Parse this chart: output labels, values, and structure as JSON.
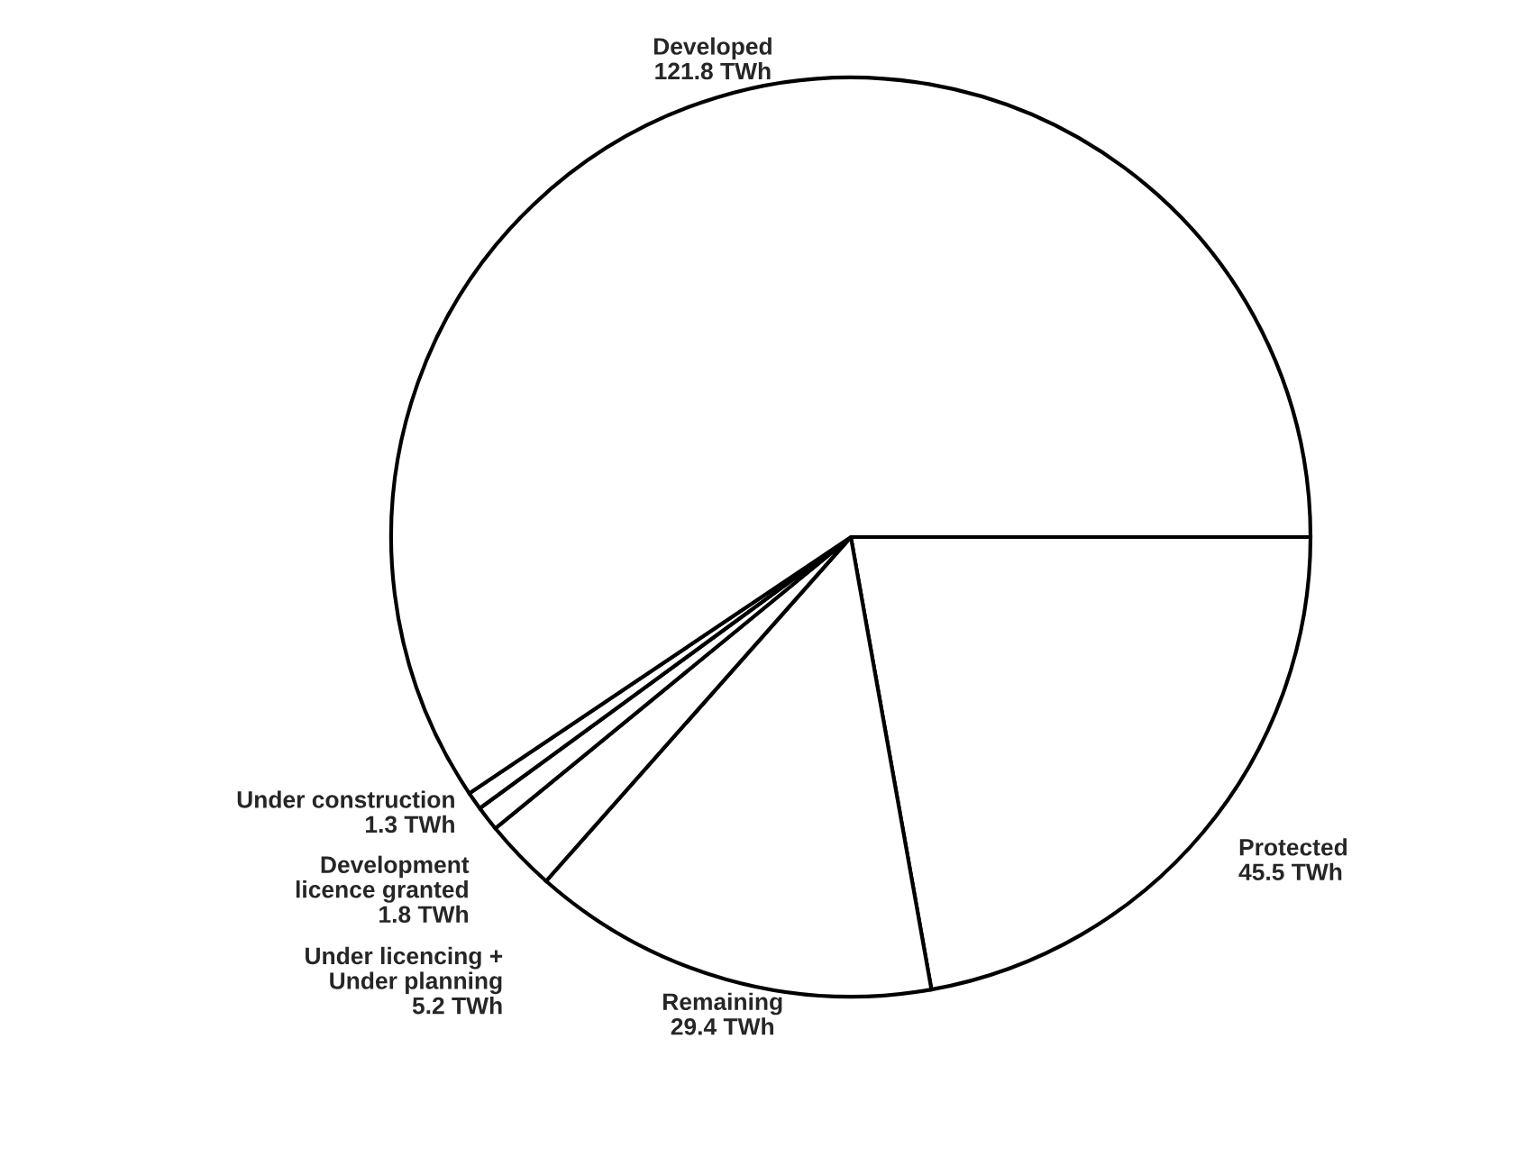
{
  "chart_data": {
    "type": "pie",
    "categories": [
      "Protected",
      "Remaining",
      "Under licencing +\nUnder planning",
      "Development\nlicence granted",
      "Under construction",
      "Developed"
    ],
    "values": [
      45.5,
      29.4,
      5.2,
      1.8,
      1.3,
      121.8
    ],
    "value_labels": [
      "45.5 TWh",
      "29.4 TWh",
      "5.2 TWh",
      "1.8 TWh",
      "1.3 TWh",
      "121.8 TWh"
    ],
    "colors": [
      "#ffffff",
      "#ffffff",
      "#ffffff",
      "#ffffff",
      "#ffffff",
      "#ffffff"
    ],
    "legend": false
  }
}
